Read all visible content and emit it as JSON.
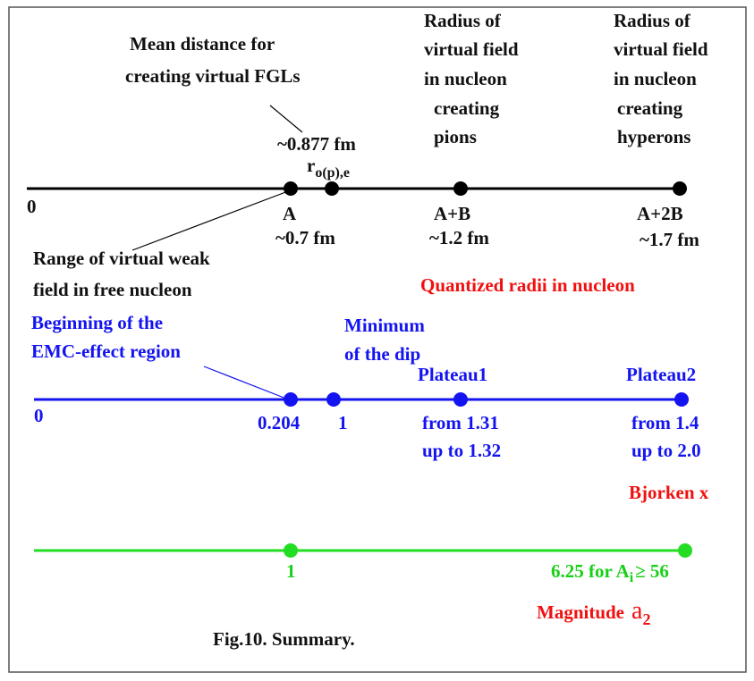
{
  "radii_scale": {
    "mean_distance": [
      "Mean distance for",
      "creating virtual FGLs"
    ],
    "mean_value": "~0.877 fm",
    "r_symbol": "r",
    "r_subscript": "o(p),e",
    "pions_note": [
      "Radius of",
      "virtual field",
      "in nucleon",
      "creating",
      "pions"
    ],
    "hyperons_note": [
      "Radius of",
      "virtual field",
      "in nucleon",
      "creating",
      "hyperons"
    ],
    "origin": "0",
    "points": [
      {
        "name": "A",
        "value": "~0.7 fm"
      },
      {
        "name": "A+B",
        "value": "~1.2 fm"
      },
      {
        "name": "A+2B",
        "value": "~1.7 fm"
      }
    ],
    "range_note": [
      "Range of virtual weak",
      "field in free nucleon"
    ],
    "caption": "Quantized radii in nucleon"
  },
  "bjorken_scale": {
    "emc_note": [
      "Beginning of the",
      "EMC-effect region"
    ],
    "dip_note": [
      "Minimum",
      "of the dip"
    ],
    "plateau1": "Plateau1",
    "plateau2": "Plateau2",
    "origin": "0",
    "emc_value": "0.204",
    "dip_value": "1",
    "plateau1_range": [
      "from 1.31",
      "up to 1.32"
    ],
    "plateau2_range": [
      "from 1.4",
      "up to 2.0"
    ],
    "caption": "Bjorken x"
  },
  "a2_scale": {
    "first_value": "1",
    "second_value_prefix": "6.25 for A",
    "second_value_subscript": "i",
    "second_value_suffix": "≥ 56",
    "caption_word": "Magnitude",
    "caption_symbol": "a",
    "caption_subscript": "2"
  },
  "figure_caption": "Fig.10. Summary."
}
